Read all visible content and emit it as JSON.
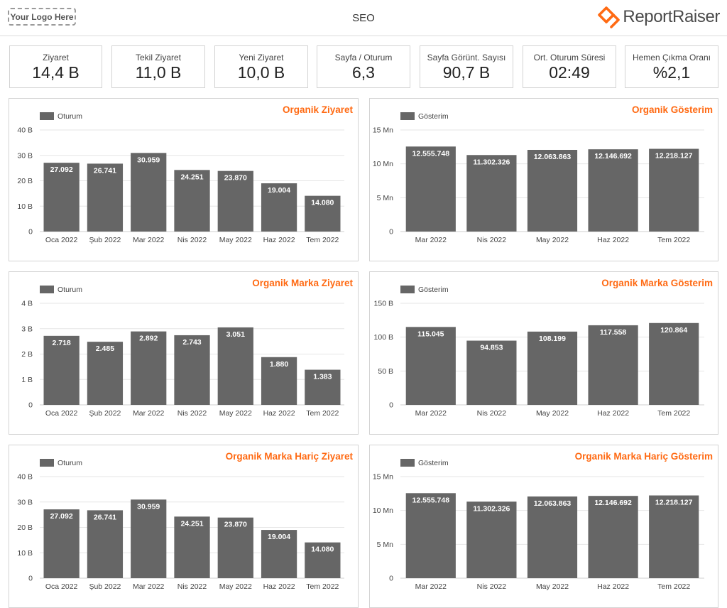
{
  "header": {
    "logo_placeholder": "Your Logo Here",
    "title": "SEO",
    "brand_name": "ReportRaiser",
    "brand_icon": "reportraiser-logo-icon"
  },
  "colors": {
    "accent": "#ff6a13",
    "bar": "#666666",
    "grid": "#e6e6e6"
  },
  "kpis": [
    {
      "label": "Ziyaret",
      "value": "14,4 B"
    },
    {
      "label": "Tekil Ziyaret",
      "value": "11,0 B"
    },
    {
      "label": "Yeni Ziyaret",
      "value": "10,0 B"
    },
    {
      "label": "Sayfa / Oturum",
      "value": "6,3"
    },
    {
      "label": "Sayfa Görünt. Sayısı",
      "value": "90,7 B"
    },
    {
      "label": "Ort. Oturum Süresi",
      "value": "02:49"
    },
    {
      "label": "Hemen Çıkma Oranı",
      "value": "%2,1"
    }
  ],
  "chart_data": [
    {
      "type": "bar",
      "title": "Organik Ziyaret",
      "categories": [
        "Oca 2022",
        "Şub 2022",
        "Mar 2022",
        "Nis 2022",
        "May 2022",
        "Haz 2022",
        "Tem 2022"
      ],
      "series": [
        {
          "name": "Oturum",
          "values": [
            27092,
            26741,
            30959,
            24251,
            23870,
            19004,
            14080
          ]
        }
      ],
      "data_labels": [
        "27.092",
        "26.741",
        "30.959",
        "24.251",
        "23.870",
        "19.004",
        "14.080"
      ],
      "ylim": [
        0,
        40000
      ],
      "yticks": [
        0,
        10000,
        20000,
        30000,
        40000
      ],
      "ytick_labels": [
        "0",
        "10 B",
        "20 B",
        "30 B",
        "40 B"
      ],
      "legend": "top-left",
      "grid": true
    },
    {
      "type": "bar",
      "title": "Organik Gösterim",
      "categories": [
        "Mar 2022",
        "Nis 2022",
        "May 2022",
        "Haz 2022",
        "Tem 2022"
      ],
      "series": [
        {
          "name": "Gösterim",
          "values": [
            12555748,
            11302326,
            12063863,
            12146692,
            12218127
          ]
        }
      ],
      "data_labels": [
        "12.555.748",
        "11.302.326",
        "12.063.863",
        "12.146.692",
        "12.218.127"
      ],
      "ylim": [
        0,
        15000000
      ],
      "yticks": [
        0,
        5000000,
        10000000,
        15000000
      ],
      "ytick_labels": [
        "0",
        "5 Mn",
        "10 Mn",
        "15 Mn"
      ],
      "legend": "top-left",
      "grid": true
    },
    {
      "type": "bar",
      "title": "Organik Marka Ziyaret",
      "categories": [
        "Oca 2022",
        "Şub 2022",
        "Mar 2022",
        "Nis 2022",
        "May 2022",
        "Haz 2022",
        "Tem 2022"
      ],
      "series": [
        {
          "name": "Oturum",
          "values": [
            2718,
            2485,
            2892,
            2743,
            3051,
            1880,
            1383
          ]
        }
      ],
      "data_labels": [
        "2.718",
        "2.485",
        "2.892",
        "2.743",
        "3.051",
        "1.880",
        "1.383"
      ],
      "ylim": [
        0,
        4000
      ],
      "yticks": [
        0,
        1000,
        2000,
        3000,
        4000
      ],
      "ytick_labels": [
        "0",
        "1 B",
        "2 B",
        "3 B",
        "4 B"
      ],
      "legend": "top-left",
      "grid": true
    },
    {
      "type": "bar",
      "title": "Organik Marka Gösterim",
      "categories": [
        "Mar 2022",
        "Nis 2022",
        "May 2022",
        "Haz 2022",
        "Tem 2022"
      ],
      "series": [
        {
          "name": "Gösterim",
          "values": [
            115045,
            94853,
            108199,
            117558,
            120864
          ]
        }
      ],
      "data_labels": [
        "115.045",
        "94.853",
        "108.199",
        "117.558",
        "120.864"
      ],
      "ylim": [
        0,
        150000
      ],
      "yticks": [
        0,
        50000,
        100000,
        150000
      ],
      "ytick_labels": [
        "0",
        "50 B",
        "100 B",
        "150 B"
      ],
      "legend": "top-left",
      "grid": true
    },
    {
      "type": "bar",
      "title": "Organik Marka Hariç Ziyaret",
      "categories": [
        "Oca 2022",
        "Şub 2022",
        "Mar 2022",
        "Nis 2022",
        "May 2022",
        "Haz 2022",
        "Tem 2022"
      ],
      "series": [
        {
          "name": "Oturum",
          "values": [
            27092,
            26741,
            30959,
            24251,
            23870,
            19004,
            14080
          ]
        }
      ],
      "data_labels": [
        "27.092",
        "26.741",
        "30.959",
        "24.251",
        "23.870",
        "19.004",
        "14.080"
      ],
      "ylim": [
        0,
        40000
      ],
      "yticks": [
        0,
        10000,
        20000,
        30000,
        40000
      ],
      "ytick_labels": [
        "0",
        "10 B",
        "20 B",
        "30 B",
        "40 B"
      ],
      "legend": "top-left",
      "grid": true
    },
    {
      "type": "bar",
      "title": "Organik Marka Hariç Gösterim",
      "categories": [
        "Mar 2022",
        "Nis 2022",
        "May 2022",
        "Haz 2022",
        "Tem 2022"
      ],
      "series": [
        {
          "name": "Gösterim",
          "values": [
            12555748,
            11302326,
            12063863,
            12146692,
            12218127
          ]
        }
      ],
      "data_labels": [
        "12.555.748",
        "11.302.326",
        "12.063.863",
        "12.146.692",
        "12.218.127"
      ],
      "ylim": [
        0,
        15000000
      ],
      "yticks": [
        0,
        5000000,
        10000000,
        15000000
      ],
      "ytick_labels": [
        "0",
        "5 Mn",
        "10 Mn",
        "15 Mn"
      ],
      "legend": "top-left",
      "grid": true
    }
  ]
}
